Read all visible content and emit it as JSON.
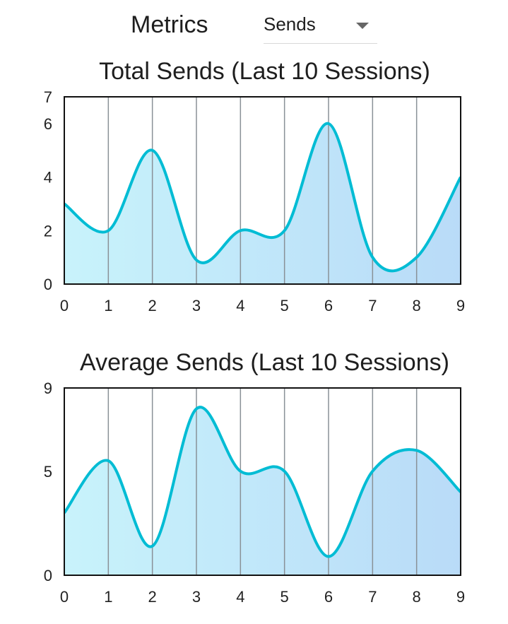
{
  "header": {
    "metrics_label": "Metrics",
    "dropdown_value": "Sends"
  },
  "colors": {
    "line": "#00bcd4",
    "fill_start": "#c8f3fb",
    "fill_end": "#b9dbf8",
    "grid": "#8a9197"
  },
  "icons": {
    "dropdown": "triangle-down-icon"
  },
  "chart_data": [
    {
      "type": "area",
      "title": "Total Sends (Last 10 Sessions)",
      "x": [
        0,
        1,
        2,
        3,
        4,
        5,
        6,
        7,
        8,
        9
      ],
      "y": [
        3,
        2,
        5,
        0.9,
        2,
        2,
        6,
        1,
        1,
        4
      ],
      "xlim": [
        0,
        9
      ],
      "ylim": [
        0,
        7
      ],
      "yticks": [
        0,
        2,
        4,
        6,
        7
      ],
      "xticks": [
        0,
        1,
        2,
        3,
        4,
        5,
        6,
        7,
        8,
        9
      ],
      "grid": "vertical",
      "smooth": true
    },
    {
      "type": "area",
      "title": "Average Sends (Last 10 Sessions)",
      "x": [
        0,
        1,
        2,
        3,
        4,
        5,
        6,
        7,
        8,
        9
      ],
      "y": [
        3,
        5.5,
        1.4,
        8,
        5,
        5,
        0.9,
        5,
        6,
        4
      ],
      "xlim": [
        0,
        9
      ],
      "ylim": [
        0,
        9
      ],
      "yticks": [
        0,
        5,
        9
      ],
      "xticks": [
        0,
        1,
        2,
        3,
        4,
        5,
        6,
        7,
        8,
        9
      ],
      "grid": "vertical",
      "smooth": true
    }
  ]
}
